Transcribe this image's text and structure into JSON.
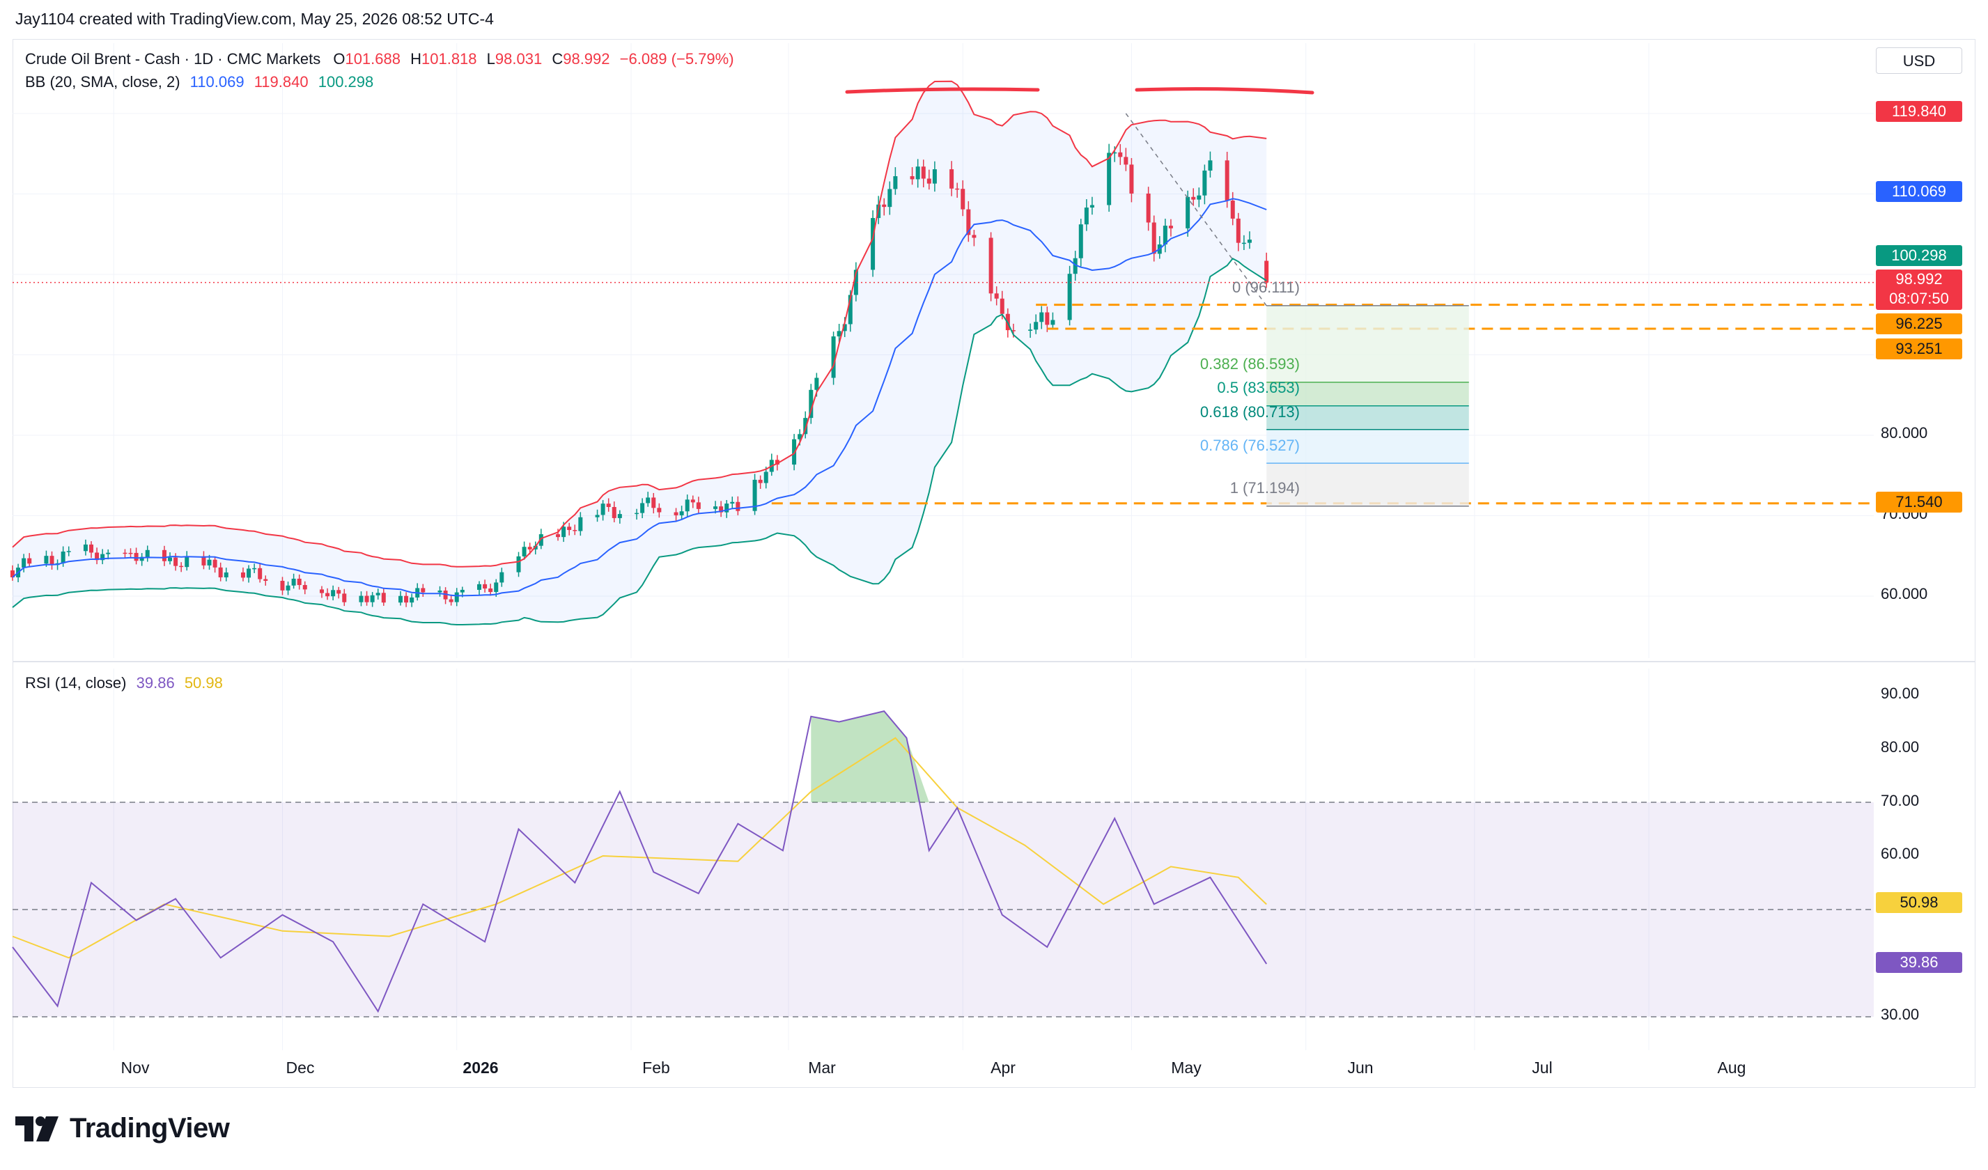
{
  "credit": "Jay1104 created with TradingView.com, May 25, 2026 08:52 UTC-4",
  "header": {
    "symbol": "Crude Oil Brent - Cash · 1D · CMC Markets",
    "o_label": "O",
    "o_value": "101.688",
    "h_label": "H",
    "h_value": "101.818",
    "l_label": "L",
    "l_value": "98.031",
    "c_label": "C",
    "c_value": "98.992",
    "change": "−6.089 (−5.79%)",
    "bb_label": "BB (20, SMA, close, 2)",
    "bb_basis": "110.069",
    "bb_upper": "119.840",
    "bb_lower": "100.298"
  },
  "currency": "USD",
  "price_axis": {
    "ticks": [
      "80.000",
      "70.000",
      "60.000"
    ],
    "badges": {
      "upper": "119.840",
      "basis": "110.069",
      "lower": "100.298",
      "last": "98.992",
      "countdown": "08:07:50",
      "level1": "96.225",
      "level2": "93.251",
      "level3": "71.540"
    }
  },
  "fib_labels": [
    "0 (96.111)",
    "0.382 (86.593)",
    "0.5 (83.653)",
    "0.618 (80.713)",
    "0.786 (76.527)",
    "1 (71.194)"
  ],
  "rsi": {
    "label": "RSI (14, close)",
    "value": "39.86",
    "ma_value": "50.98",
    "ticks": [
      "90.00",
      "80.00",
      "70.00",
      "60.00",
      "30.00"
    ]
  },
  "x_axis": [
    "Nov",
    "Dec",
    "2026",
    "Feb",
    "Mar",
    "Apr",
    "May",
    "Jun",
    "Jul",
    "Aug"
  ],
  "brand": "TradingView",
  "colors": {
    "up": "#089981",
    "down": "#f23645",
    "basis": "#2962ff",
    "upper": "#f23645",
    "lower": "#089981",
    "rsi": "#7e57c2",
    "rsi_ma": "#f7d13d",
    "level": "#ff9800"
  },
  "chart_data": [
    {
      "type": "candlestick",
      "title": "Crude Oil Brent - Cash · 1D · CMC Markets",
      "y_axis": "price (USD)",
      "ylim": [
        54,
        130
      ],
      "x_range": [
        "2025-10-14",
        "2026-09-10"
      ],
      "ohlc_keypoints": [
        {
          "date": "2025-10-14",
          "close": 63.2
        },
        {
          "date": "2025-10-24",
          "close": 65.4
        },
        {
          "date": "2025-11-14",
          "close": 64.3
        },
        {
          "date": "2025-12-16",
          "close": 59.6
        },
        {
          "date": "2026-01-06",
          "close": 60.5
        },
        {
          "date": "2026-01-14",
          "close": 66.0
        },
        {
          "date": "2026-01-27",
          "close": 70.8
        },
        {
          "date": "2026-02-20",
          "close": 71.5
        },
        {
          "date": "2026-03-02",
          "close": 79.0
        },
        {
          "date": "2026-03-09",
          "close": 91.5
        },
        {
          "date": "2026-03-19",
          "close": 111.5
        },
        {
          "date": "2026-03-30",
          "close": 112.0
        },
        {
          "date": "2026-04-08",
          "close": 94.5
        },
        {
          "date": "2026-04-16",
          "close": 93.5
        },
        {
          "date": "2026-04-28",
          "close": 117.0
        },
        {
          "date": "2026-05-05",
          "close": 103.0
        },
        {
          "date": "2026-05-15",
          "close": 112.5
        },
        {
          "date": "2026-05-25",
          "open": 101.688,
          "high": 101.818,
          "low": 98.031,
          "close": 98.992
        }
      ],
      "bollinger": {
        "length": 20,
        "basis": 110.069,
        "upper": 119.84,
        "lower": 100.298
      },
      "horizontal_levels": [
        96.225,
        93.251,
        71.54
      ],
      "fibonacci": [
        {
          "ratio": 0,
          "price": 96.111
        },
        {
          "ratio": 0.382,
          "price": 86.593
        },
        {
          "ratio": 0.5,
          "price": 83.653
        },
        {
          "ratio": 0.618,
          "price": 80.713
        },
        {
          "ratio": 0.786,
          "price": 76.527
        },
        {
          "ratio": 1,
          "price": 71.194
        }
      ]
    },
    {
      "type": "line",
      "title": "RSI (14, close)",
      "ylim": [
        26,
        93
      ],
      "bands": [
        30,
        50,
        70
      ],
      "series": [
        {
          "name": "RSI",
          "points": [
            [
              "2025-10-14",
              43
            ],
            [
              "2025-10-22",
              32
            ],
            [
              "2025-10-28",
              55
            ],
            [
              "2025-11-05",
              48
            ],
            [
              "2025-11-12",
              52
            ],
            [
              "2025-11-20",
              41
            ],
            [
              "2025-12-01",
              49
            ],
            [
              "2025-12-10",
              44
            ],
            [
              "2025-12-18",
              31
            ],
            [
              "2025-12-26",
              51
            ],
            [
              "2026-01-06",
              44
            ],
            [
              "2026-01-12",
              65
            ],
            [
              "2026-01-22",
              55
            ],
            [
              "2026-01-30",
              72
            ],
            [
              "2026-02-05",
              57
            ],
            [
              "2026-02-13",
              53
            ],
            [
              "2026-02-20",
              66
            ],
            [
              "2026-02-28",
              61
            ],
            [
              "2026-03-05",
              86
            ],
            [
              "2026-03-10",
              85
            ],
            [
              "2026-03-18",
              87
            ],
            [
              "2026-03-22",
              82
            ],
            [
              "2026-03-26",
              61
            ],
            [
              "2026-03-31",
              69
            ],
            [
              "2026-04-08",
              49
            ],
            [
              "2026-04-16",
              43
            ],
            [
              "2026-04-28",
              67
            ],
            [
              "2026-05-05",
              51
            ],
            [
              "2026-05-15",
              56
            ],
            [
              "2026-05-25",
              39.86
            ]
          ]
        },
        {
          "name": "RSI MA",
          "points": [
            [
              "2025-10-14",
              45
            ],
            [
              "2025-10-24",
              41
            ],
            [
              "2025-11-10",
              51
            ],
            [
              "2025-12-01",
              46
            ],
            [
              "2025-12-20",
              45
            ],
            [
              "2026-01-08",
              51
            ],
            [
              "2026-01-27",
              60
            ],
            [
              "2026-02-20",
              59
            ],
            [
              "2026-03-05",
              72
            ],
            [
              "2026-03-20",
              82
            ],
            [
              "2026-03-31",
              69
            ],
            [
              "2026-04-12",
              62
            ],
            [
              "2026-04-26",
              51
            ],
            [
              "2026-05-08",
              58
            ],
            [
              "2026-05-20",
              56
            ],
            [
              "2026-05-25",
              50.98
            ]
          ]
        }
      ]
    }
  ]
}
